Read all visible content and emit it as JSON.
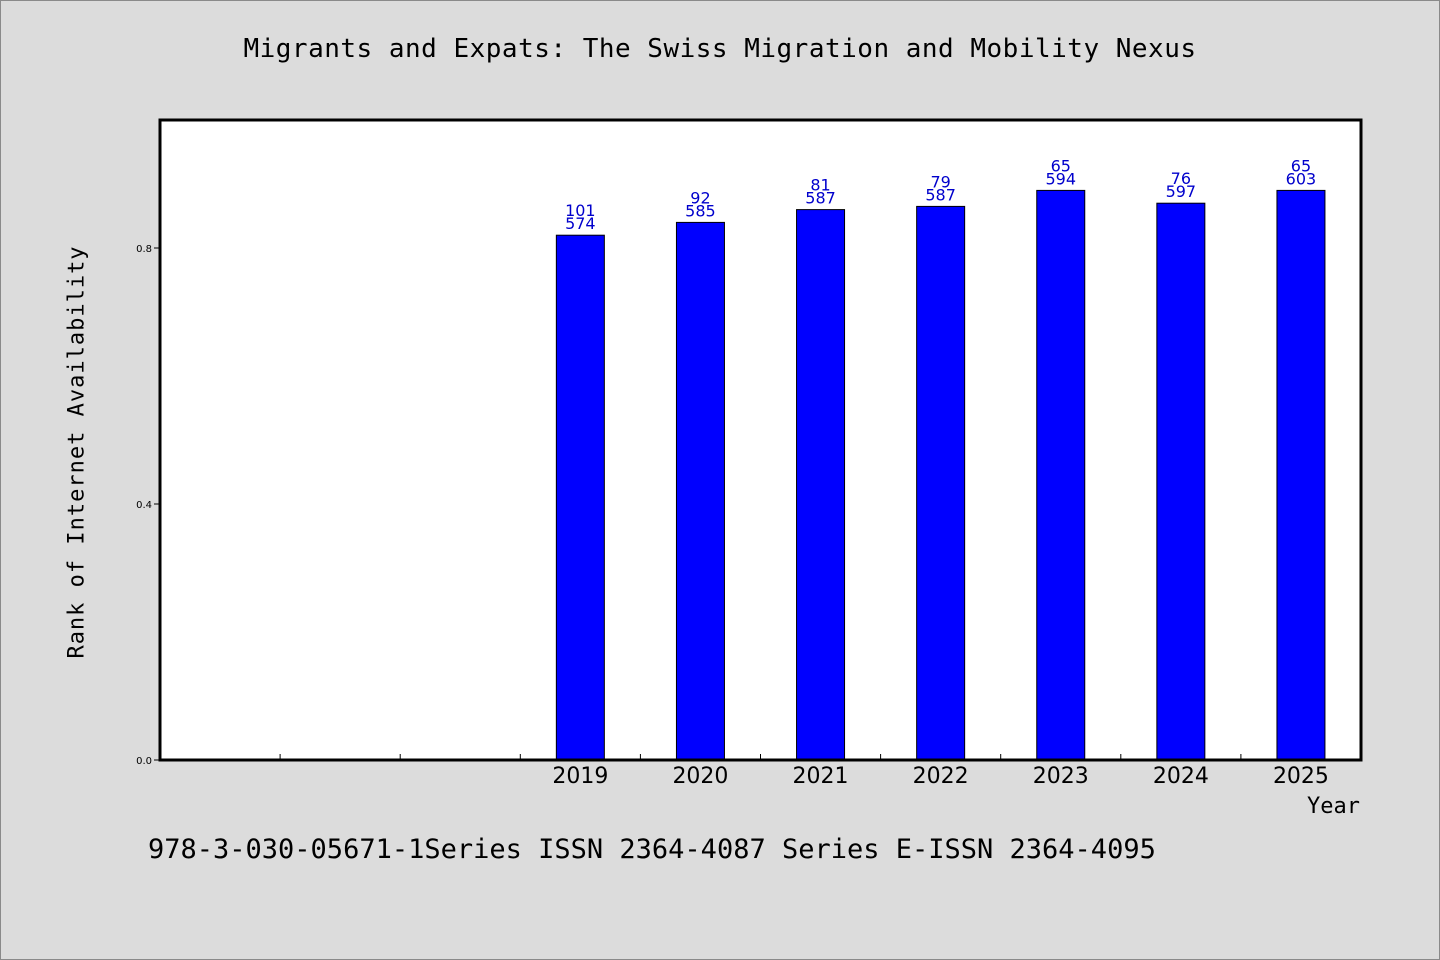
{
  "chart_data": {
    "type": "bar",
    "title": "Migrants and Expats: The Swiss Migration and Mobility Nexus",
    "xlabel": "Year",
    "ylabel": "Rank of Internet Availability",
    "categories": [
      "",
      "",
      "",
      "2019",
      "2020",
      "2021",
      "2022",
      "2023",
      "2024",
      "2025"
    ],
    "values": [
      null,
      null,
      null,
      0.82,
      0.84,
      0.86,
      0.865,
      0.89,
      0.87,
      0.89
    ],
    "bar_labels": [
      null,
      null,
      null,
      [
        "101",
        "574"
      ],
      [
        "92",
        "585"
      ],
      [
        "81",
        "587"
      ],
      [
        "79",
        "587"
      ],
      [
        "65",
        "594"
      ],
      [
        "76",
        "597"
      ],
      [
        "65",
        "603"
      ]
    ],
    "yticks": [
      0.0,
      0.4,
      0.8
    ],
    "ytick_labels": [
      "0.0",
      "0.4",
      "0.8"
    ],
    "ylim": [
      0,
      1.0
    ],
    "bar_color": "#0000ff",
    "label_color": "#0000cc",
    "grid": false,
    "legend": false
  },
  "footer": "978-3-030-05671-1Series ISSN 2364-4087 Series E-ISSN 2364-4095"
}
